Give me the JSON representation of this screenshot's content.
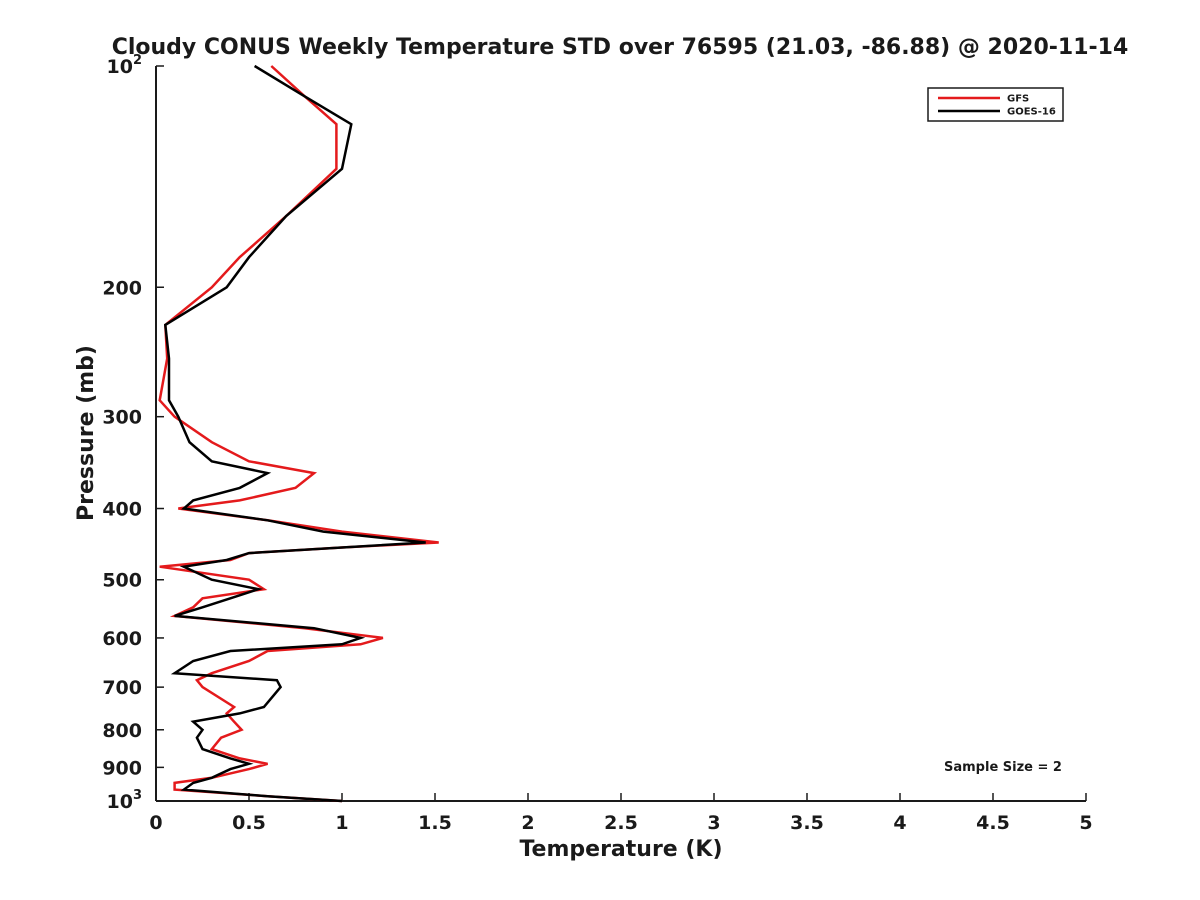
{
  "chart_data": {
    "type": "line",
    "title": "Cloudy CONUS Weekly Temperature STD over 76595 (21.03, -86.88) @ 2020-11-14",
    "xlabel": "Temperature (K)",
    "ylabel": "Pressure (mb)",
    "xlim": [
      0,
      5
    ],
    "ylim": [
      100,
      1000
    ],
    "y_scale": "log",
    "y_reversed": true,
    "grid": false,
    "legend_position": "top-right",
    "x_ticks": [
      0,
      0.5,
      1,
      1.5,
      2,
      2.5,
      3,
      3.5,
      4,
      4.5,
      5
    ],
    "x_tick_labels": [
      "0",
      "0.5",
      "1",
      "1.5",
      "2",
      "2.5",
      "3",
      "3.5",
      "4",
      "4.5",
      "5"
    ],
    "y_ticks": [
      {
        "value": 100,
        "base": "10",
        "exp": "2",
        "label": ""
      },
      {
        "value": 200,
        "base": "",
        "exp": "",
        "label": "200"
      },
      {
        "value": 300,
        "base": "",
        "exp": "",
        "label": "300"
      },
      {
        "value": 400,
        "base": "",
        "exp": "",
        "label": "400"
      },
      {
        "value": 500,
        "base": "",
        "exp": "",
        "label": "500"
      },
      {
        "value": 600,
        "base": "",
        "exp": "",
        "label": "600"
      },
      {
        "value": 700,
        "base": "",
        "exp": "",
        "label": "700"
      },
      {
        "value": 800,
        "base": "",
        "exp": "",
        "label": "800"
      },
      {
        "value": 900,
        "base": "",
        "exp": "",
        "label": "900"
      },
      {
        "value": 1000,
        "base": "10",
        "exp": "3",
        "label": ""
      }
    ],
    "annotation": "Sample Size = 2",
    "series": [
      {
        "name": "GFS",
        "color": "#e41a1c",
        "points": [
          [
            0.62,
            100
          ],
          [
            0.8,
            110
          ],
          [
            0.97,
            120
          ],
          [
            0.97,
            138
          ],
          [
            0.7,
            160
          ],
          [
            0.45,
            182
          ],
          [
            0.3,
            200
          ],
          [
            0.05,
            225
          ],
          [
            0.06,
            250
          ],
          [
            0.02,
            285
          ],
          [
            0.1,
            300
          ],
          [
            0.3,
            325
          ],
          [
            0.5,
            345
          ],
          [
            0.85,
            358
          ],
          [
            0.75,
            375
          ],
          [
            0.45,
            390
          ],
          [
            0.12,
            400
          ],
          [
            0.6,
            415
          ],
          [
            1.0,
            430
          ],
          [
            1.52,
            445
          ],
          [
            1.0,
            452
          ],
          [
            0.5,
            460
          ],
          [
            0.4,
            470
          ],
          [
            0.02,
            480
          ],
          [
            0.5,
            500
          ],
          [
            0.58,
            515
          ],
          [
            0.25,
            530
          ],
          [
            0.2,
            545
          ],
          [
            0.1,
            560
          ],
          [
            0.8,
            582
          ],
          [
            1.22,
            600
          ],
          [
            1.1,
            612
          ],
          [
            0.6,
            625
          ],
          [
            0.5,
            645
          ],
          [
            0.3,
            670
          ],
          [
            0.22,
            685
          ],
          [
            0.25,
            700
          ],
          [
            0.42,
            745
          ],
          [
            0.38,
            760
          ],
          [
            0.42,
            780
          ],
          [
            0.46,
            800
          ],
          [
            0.35,
            820
          ],
          [
            0.3,
            850
          ],
          [
            0.45,
            875
          ],
          [
            0.6,
            890
          ],
          [
            0.5,
            905
          ],
          [
            0.3,
            930
          ],
          [
            0.1,
            945
          ],
          [
            0.1,
            965
          ],
          [
            0.6,
            985
          ],
          [
            1.0,
            1000
          ]
        ]
      },
      {
        "name": "GOES-16",
        "color": "#000000",
        "points": [
          [
            0.53,
            100
          ],
          [
            0.8,
            110
          ],
          [
            1.05,
            120
          ],
          [
            1.0,
            138
          ],
          [
            0.7,
            160
          ],
          [
            0.5,
            182
          ],
          [
            0.38,
            200
          ],
          [
            0.05,
            225
          ],
          [
            0.07,
            250
          ],
          [
            0.07,
            285
          ],
          [
            0.12,
            300
          ],
          [
            0.18,
            325
          ],
          [
            0.3,
            345
          ],
          [
            0.6,
            358
          ],
          [
            0.45,
            375
          ],
          [
            0.2,
            390
          ],
          [
            0.15,
            400
          ],
          [
            0.6,
            415
          ],
          [
            0.9,
            430
          ],
          [
            1.45,
            445
          ],
          [
            1.0,
            452
          ],
          [
            0.5,
            460
          ],
          [
            0.38,
            470
          ],
          [
            0.15,
            480
          ],
          [
            0.3,
            500
          ],
          [
            0.55,
            515
          ],
          [
            0.4,
            530
          ],
          [
            0.25,
            545
          ],
          [
            0.1,
            560
          ],
          [
            0.85,
            582
          ],
          [
            1.1,
            600
          ],
          [
            1.0,
            612
          ],
          [
            0.4,
            625
          ],
          [
            0.2,
            645
          ],
          [
            0.1,
            670
          ],
          [
            0.65,
            685
          ],
          [
            0.67,
            700
          ],
          [
            0.58,
            745
          ],
          [
            0.45,
            760
          ],
          [
            0.2,
            780
          ],
          [
            0.25,
            800
          ],
          [
            0.22,
            820
          ],
          [
            0.25,
            850
          ],
          [
            0.4,
            875
          ],
          [
            0.5,
            890
          ],
          [
            0.4,
            905
          ],
          [
            0.3,
            930
          ],
          [
            0.2,
            945
          ],
          [
            0.15,
            965
          ],
          [
            0.6,
            985
          ],
          [
            1.0,
            1000
          ]
        ]
      }
    ]
  }
}
